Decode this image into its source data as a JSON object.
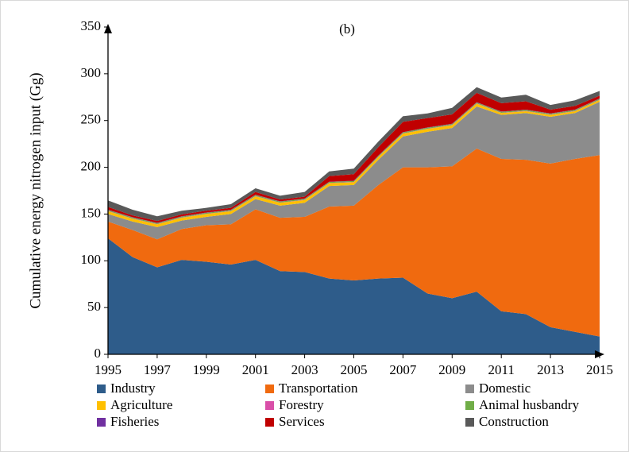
{
  "chart_data": {
    "type": "stacked-area",
    "title": "(b)",
    "y_label": "Cumulative energy nitrogen input (Gg)",
    "x": [
      1995,
      1996,
      1997,
      1998,
      1999,
      2000,
      2001,
      2002,
      2003,
      2004,
      2005,
      2006,
      2007,
      2008,
      2009,
      2010,
      2011,
      2012,
      2013,
      2014,
      2015
    ],
    "xlim": [
      1995,
      2015
    ],
    "xticks": [
      1995,
      1997,
      1999,
      2001,
      2003,
      2005,
      2007,
      2009,
      2011,
      2013,
      2015
    ],
    "ylim": [
      0,
      350
    ],
    "yticks": [
      0,
      50,
      100,
      150,
      200,
      250,
      300,
      350
    ],
    "series": [
      {
        "name": "Industry",
        "color": "#2e5c8a",
        "values": [
          124,
          104,
          93,
          101,
          99,
          96,
          101,
          89,
          88,
          81,
          79,
          81,
          82,
          65,
          60,
          67,
          46,
          43,
          29,
          24,
          19
        ]
      },
      {
        "name": "Transportation",
        "color": "#f06a0f",
        "values": [
          18,
          29,
          30,
          33,
          39,
          43,
          54,
          57,
          59,
          77,
          80,
          100,
          118,
          135,
          141,
          153,
          163,
          165,
          175,
          185,
          194
        ]
      },
      {
        "name": "Domestic",
        "color": "#8c8c8c",
        "values": [
          8,
          9,
          13,
          9,
          9,
          11,
          11,
          13,
          15,
          22,
          22,
          27,
          33,
          38,
          41,
          45,
          47,
          50,
          50,
          49,
          57
        ]
      },
      {
        "name": "Agriculture",
        "color": "#ffc000",
        "values": [
          3,
          3,
          3,
          3,
          3,
          3,
          3,
          3,
          3,
          3,
          3,
          3,
          3,
          3,
          3,
          3,
          2,
          2,
          2,
          2,
          2
        ]
      },
      {
        "name": "Forestry",
        "color": "#d94fa8",
        "values": [
          0.3,
          0.3,
          0.3,
          0.3,
          0.3,
          0.3,
          0.3,
          0.3,
          0.3,
          0.3,
          0.3,
          0.3,
          0.3,
          0.3,
          0.3,
          0.3,
          0.3,
          0.3,
          0.3,
          0.3,
          0.3
        ]
      },
      {
        "name": "Animal husbandry",
        "color": "#70ad47",
        "values": [
          1,
          1,
          1,
          1,
          1,
          1,
          1,
          1,
          1,
          1,
          1,
          1,
          1,
          1,
          1,
          1,
          1,
          1,
          1,
          1,
          1
        ]
      },
      {
        "name": "Fisheries",
        "color": "#7030a0",
        "values": [
          0.3,
          0.3,
          0.3,
          0.3,
          0.3,
          0.3,
          0.3,
          0.3,
          0.3,
          0.3,
          0.3,
          0.3,
          0.3,
          0.3,
          0.3,
          0.3,
          0.3,
          0.3,
          0.3,
          0.3,
          0.3
        ]
      },
      {
        "name": "Services",
        "color": "#c00000",
        "values": [
          3,
          2,
          2,
          2,
          2,
          2,
          3,
          2,
          2,
          6,
          7,
          9,
          11,
          10,
          10,
          10,
          9,
          9,
          4,
          4,
          3
        ]
      },
      {
        "name": "Construction",
        "color": "#595959",
        "values": [
          7,
          6,
          5,
          4,
          3,
          4,
          4,
          4,
          5,
          5,
          6,
          6,
          6,
          5,
          7,
          6,
          6,
          7,
          5,
          6,
          5
        ]
      }
    ]
  }
}
